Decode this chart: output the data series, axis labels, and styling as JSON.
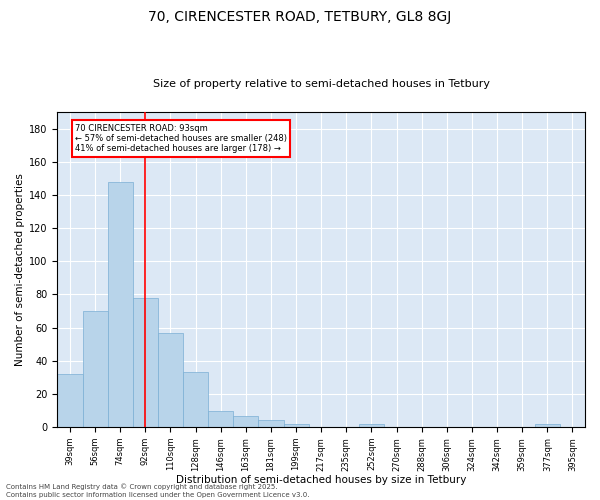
{
  "title1": "70, CIRENCESTER ROAD, TETBURY, GL8 8GJ",
  "title2": "Size of property relative to semi-detached houses in Tetbury",
  "xlabel": "Distribution of semi-detached houses by size in Tetbury",
  "ylabel": "Number of semi-detached properties",
  "categories": [
    "39sqm",
    "56sqm",
    "74sqm",
    "92sqm",
    "110sqm",
    "128sqm",
    "146sqm",
    "163sqm",
    "181sqm",
    "199sqm",
    "217sqm",
    "235sqm",
    "252sqm",
    "270sqm",
    "288sqm",
    "306sqm",
    "324sqm",
    "342sqm",
    "359sqm",
    "377sqm",
    "395sqm"
  ],
  "values": [
    32,
    70,
    148,
    78,
    57,
    33,
    10,
    7,
    4,
    2,
    0,
    0,
    2,
    0,
    0,
    0,
    0,
    0,
    0,
    2,
    0
  ],
  "bar_color": "#b8d4ea",
  "bar_edge_color": "#7aafd4",
  "vline_x": 3,
  "vline_color": "red",
  "annotation_title": "70 CIRENCESTER ROAD: 93sqm",
  "annotation_line1": "← 57% of semi-detached houses are smaller (248)",
  "annotation_line2": "41% of semi-detached houses are larger (178) →",
  "annotation_box_color": "white",
  "annotation_box_edge": "red",
  "footnote1": "Contains HM Land Registry data © Crown copyright and database right 2025.",
  "footnote2": "Contains public sector information licensed under the Open Government Licence v3.0.",
  "ylim": [
    0,
    190
  ],
  "background_color": "#dce8f5"
}
